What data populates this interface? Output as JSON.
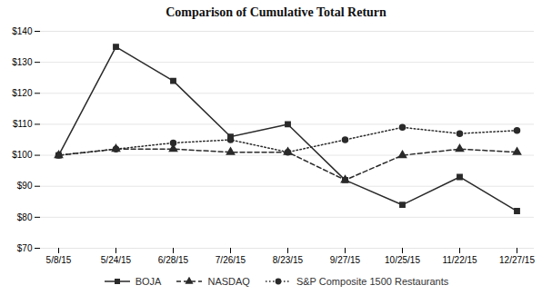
{
  "chart_data": {
    "type": "line",
    "title": "Comparison of Cumulative Total Return",
    "categories": [
      "5/8/15",
      "5/24/15",
      "6/28/15",
      "7/26/15",
      "8/23/15",
      "9/27/15",
      "10/25/15",
      "11/22/15",
      "12/27/15"
    ],
    "series": [
      {
        "name": "BOJA",
        "color": "#2a2a2a",
        "marker": "square",
        "line_style": "solid",
        "values": [
          100,
          135,
          124,
          106,
          110,
          92,
          84,
          93,
          82
        ]
      },
      {
        "name": "NASDAQ",
        "color": "#2a2a2a",
        "marker": "triangle",
        "line_style": "dashed",
        "values": [
          100,
          102,
          102,
          101,
          101,
          92,
          100,
          102,
          101
        ]
      },
      {
        "name": "S&P Composite 1500 Restaurants",
        "color": "#2a2a2a",
        "marker": "circle",
        "line_style": "dotted",
        "values": [
          100,
          102,
          104,
          105,
          101,
          105,
          109,
          107,
          108
        ]
      }
    ],
    "ylim": [
      70,
      140
    ],
    "yticks": [
      {
        "value": 70,
        "label": "$70"
      },
      {
        "value": 80,
        "label": "$80"
      },
      {
        "value": 90,
        "label": "$90"
      },
      {
        "value": 100,
        "label": "$100"
      },
      {
        "value": 110,
        "label": "$110"
      },
      {
        "value": 120,
        "label": "$120"
      },
      {
        "value": 130,
        "label": "$130"
      },
      {
        "value": 140,
        "label": "$140"
      }
    ],
    "grid": true,
    "legend": "bottom"
  }
}
